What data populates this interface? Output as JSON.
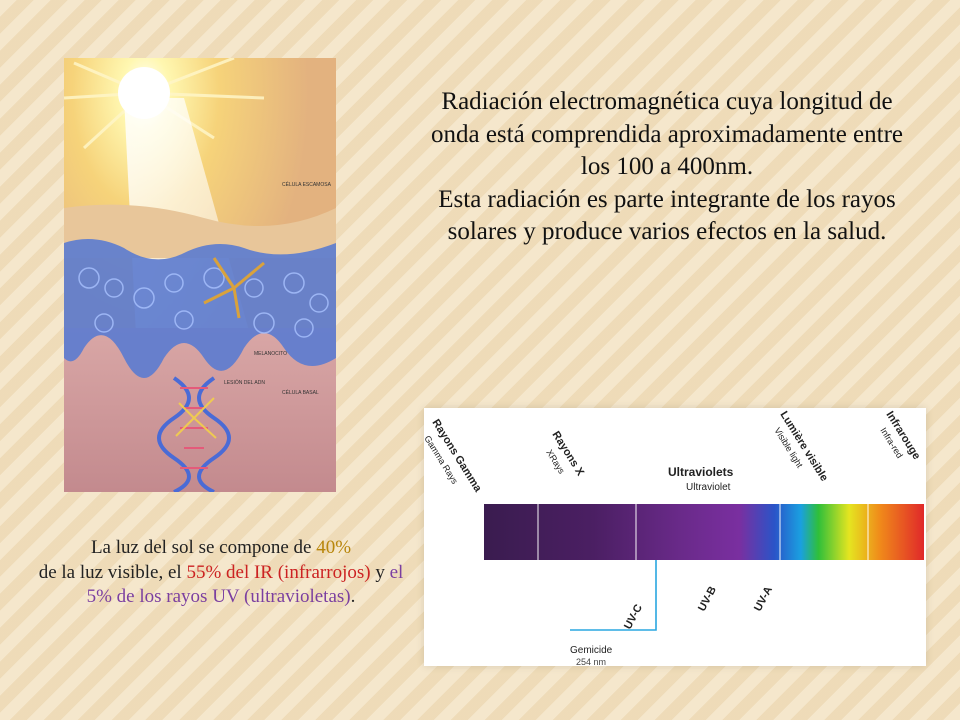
{
  "main_text": {
    "paragraph1": "Radiación electromagnética cuya longitud de onda está comprendida aproximadamente entre los 100 a 400nm.",
    "paragraph2": "Esta radiación es parte integrante de los rayos solares y produce varios efectos en la salud."
  },
  "caption": {
    "part1": "La luz del sol se compone de ",
    "pct_visible": "40%",
    "part2": "de la luz visible, el ",
    "ir": "55% del IR (infrarrojos)",
    "part3": " y ",
    "uv": "el 5% de los rayos UV (ultravioletas)",
    "part4": "."
  },
  "illustration": {
    "labels": {
      "escamosa": "CÉLULA ESCAMOSA",
      "melanocito": "MELANOCITO",
      "lesion_adn": "LESIÓN DEL ADN",
      "basal": "CÉLULA BASAL"
    }
  },
  "spectrum": {
    "rayons_gamma": "Rayons Gamma",
    "gamma_rays": "Gamma Rays",
    "rayons_x": "Rayons X",
    "xrays": "XRays",
    "ultraviolets": "Ultraviolets",
    "ultraviolet": "Ultraviolet",
    "lumiere_visible": "Lumière visible",
    "visible_light": "Visible light",
    "infrarouge": "Infrarouge",
    "infra_red": "Infra-red",
    "uvc": "UV-C",
    "uvb": "UV-B",
    "uva": "UV-A",
    "germicide": "Gemicide",
    "germicide_nm": "254 nm"
  },
  "colors": {
    "caption_visible": "#b8860b",
    "caption_ir": "#cc2222",
    "caption_uv": "#7b3fa0",
    "spectrum_label": "#222222"
  }
}
